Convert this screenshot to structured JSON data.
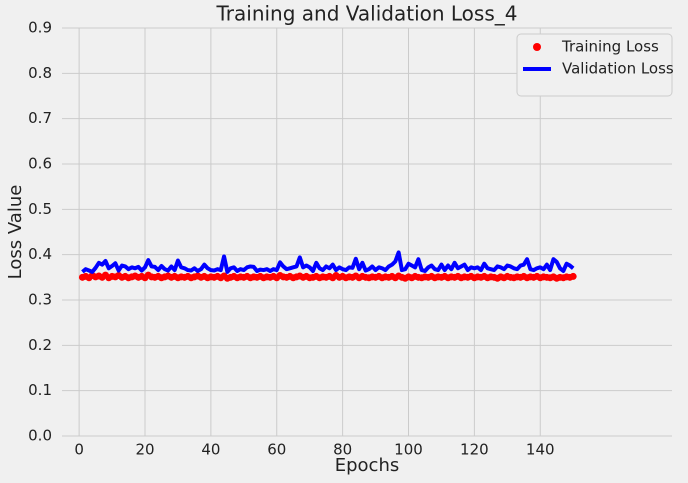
{
  "chart_data": {
    "type": "line",
    "title": "Training and Validation Loss_4",
    "x_label": "Epochs",
    "y_label": "Loss Value",
    "x": [
      1,
      2,
      3,
      4,
      5,
      6,
      7,
      8,
      9,
      10,
      11,
      12,
      13,
      14,
      15,
      16,
      17,
      18,
      19,
      20,
      21,
      22,
      23,
      24,
      25,
      26,
      27,
      28,
      29,
      30,
      31,
      32,
      33,
      34,
      35,
      36,
      37,
      38,
      39,
      40,
      41,
      42,
      43,
      44,
      45,
      46,
      47,
      48,
      49,
      50,
      51,
      52,
      53,
      54,
      55,
      56,
      57,
      58,
      59,
      60,
      61,
      62,
      63,
      64,
      65,
      66,
      67,
      68,
      69,
      70,
      71,
      72,
      73,
      74,
      75,
      76,
      77,
      78,
      79,
      80,
      81,
      82,
      83,
      84,
      85,
      86,
      87,
      88,
      89,
      90,
      91,
      92,
      93,
      94,
      95,
      96,
      97,
      98,
      99,
      100,
      101,
      102,
      103,
      104,
      105,
      106,
      107,
      108,
      109,
      110,
      111,
      112,
      113,
      114,
      115,
      116,
      117,
      118,
      119,
      120,
      121,
      122,
      123,
      124,
      125,
      126,
      127,
      128,
      129,
      130,
      131,
      132,
      133,
      134,
      135,
      136,
      137,
      138,
      139,
      140,
      141,
      142,
      143,
      144,
      145,
      146,
      147,
      148,
      149,
      150
    ],
    "series": [
      {
        "name": "Training Loss",
        "color": "#ff0000",
        "style": "markers",
        "values": [
          0.35,
          0.352,
          0.349,
          0.354,
          0.351,
          0.353,
          0.35,
          0.355,
          0.349,
          0.352,
          0.351,
          0.354,
          0.35,
          0.352,
          0.349,
          0.351,
          0.353,
          0.35,
          0.352,
          0.349,
          0.355,
          0.351,
          0.35,
          0.352,
          0.349,
          0.351,
          0.353,
          0.35,
          0.352,
          0.349,
          0.351,
          0.35,
          0.352,
          0.349,
          0.351,
          0.353,
          0.35,
          0.352,
          0.349,
          0.351,
          0.35,
          0.352,
          0.349,
          0.353,
          0.348,
          0.35,
          0.352,
          0.349,
          0.351,
          0.35,
          0.352,
          0.349,
          0.351,
          0.35,
          0.352,
          0.349,
          0.351,
          0.35,
          0.352,
          0.349,
          0.354,
          0.351,
          0.35,
          0.352,
          0.349,
          0.351,
          0.353,
          0.35,
          0.352,
          0.349,
          0.35,
          0.352,
          0.349,
          0.351,
          0.35,
          0.352,
          0.349,
          0.354,
          0.35,
          0.352,
          0.349,
          0.351,
          0.35,
          0.353,
          0.349,
          0.352,
          0.35,
          0.349,
          0.351,
          0.35,
          0.352,
          0.349,
          0.351,
          0.35,
          0.352,
          0.349,
          0.353,
          0.35,
          0.348,
          0.351,
          0.349,
          0.352,
          0.35,
          0.349,
          0.351,
          0.35,
          0.352,
          0.349,
          0.351,
          0.35,
          0.352,
          0.349,
          0.351,
          0.35,
          0.352,
          0.349,
          0.351,
          0.35,
          0.352,
          0.349,
          0.351,
          0.35,
          0.352,
          0.349,
          0.351,
          0.35,
          0.348,
          0.351,
          0.349,
          0.352,
          0.35,
          0.349,
          0.351,
          0.35,
          0.352,
          0.349,
          0.351,
          0.35,
          0.352,
          0.349,
          0.351,
          0.35,
          0.349,
          0.351,
          0.348,
          0.35,
          0.349,
          0.351,
          0.35,
          0.352
        ]
      },
      {
        "name": "Validation Loss",
        "color": "#0000ff",
        "style": "line",
        "values": [
          0.362,
          0.368,
          0.365,
          0.362,
          0.371,
          0.382,
          0.378,
          0.386,
          0.37,
          0.375,
          0.381,
          0.365,
          0.376,
          0.374,
          0.368,
          0.372,
          0.37,
          0.373,
          0.365,
          0.372,
          0.388,
          0.374,
          0.373,
          0.366,
          0.375,
          0.368,
          0.365,
          0.374,
          0.366,
          0.387,
          0.372,
          0.37,
          0.366,
          0.365,
          0.37,
          0.364,
          0.368,
          0.378,
          0.37,
          0.366,
          0.365,
          0.368,
          0.366,
          0.396,
          0.362,
          0.37,
          0.372,
          0.364,
          0.368,
          0.366,
          0.372,
          0.374,
          0.373,
          0.364,
          0.367,
          0.366,
          0.368,
          0.364,
          0.368,
          0.366,
          0.383,
          0.374,
          0.368,
          0.37,
          0.372,
          0.374,
          0.394,
          0.372,
          0.376,
          0.372,
          0.364,
          0.382,
          0.37,
          0.366,
          0.374,
          0.37,
          0.378,
          0.366,
          0.372,
          0.368,
          0.366,
          0.372,
          0.371,
          0.391,
          0.368,
          0.382,
          0.365,
          0.368,
          0.374,
          0.366,
          0.372,
          0.37,
          0.366,
          0.374,
          0.378,
          0.385,
          0.405,
          0.366,
          0.368,
          0.38,
          0.376,
          0.372,
          0.39,
          0.366,
          0.364,
          0.372,
          0.376,
          0.368,
          0.366,
          0.378,
          0.366,
          0.376,
          0.368,
          0.382,
          0.37,
          0.374,
          0.378,
          0.366,
          0.372,
          0.37,
          0.372,
          0.366,
          0.38,
          0.37,
          0.368,
          0.366,
          0.374,
          0.372,
          0.368,
          0.376,
          0.374,
          0.37,
          0.368,
          0.376,
          0.378,
          0.39,
          0.368,
          0.366,
          0.37,
          0.372,
          0.368,
          0.378,
          0.366,
          0.39,
          0.384,
          0.37,
          0.364,
          0.38,
          0.376,
          0.37
        ]
      }
    ],
    "xlim": [
      -5.2,
      180
    ],
    "xticks": [
      0,
      20,
      40,
      60,
      80,
      100,
      120,
      140
    ],
    "ylim": [
      0,
      0.9
    ],
    "yticks": [
      {
        "value": 0,
        "label": "0.0"
      },
      0.1,
      0.2,
      0.3,
      0.4,
      0.5,
      0.6,
      0.7,
      0.8,
      0.9
    ],
    "grid": true,
    "legend": "upper right"
  }
}
